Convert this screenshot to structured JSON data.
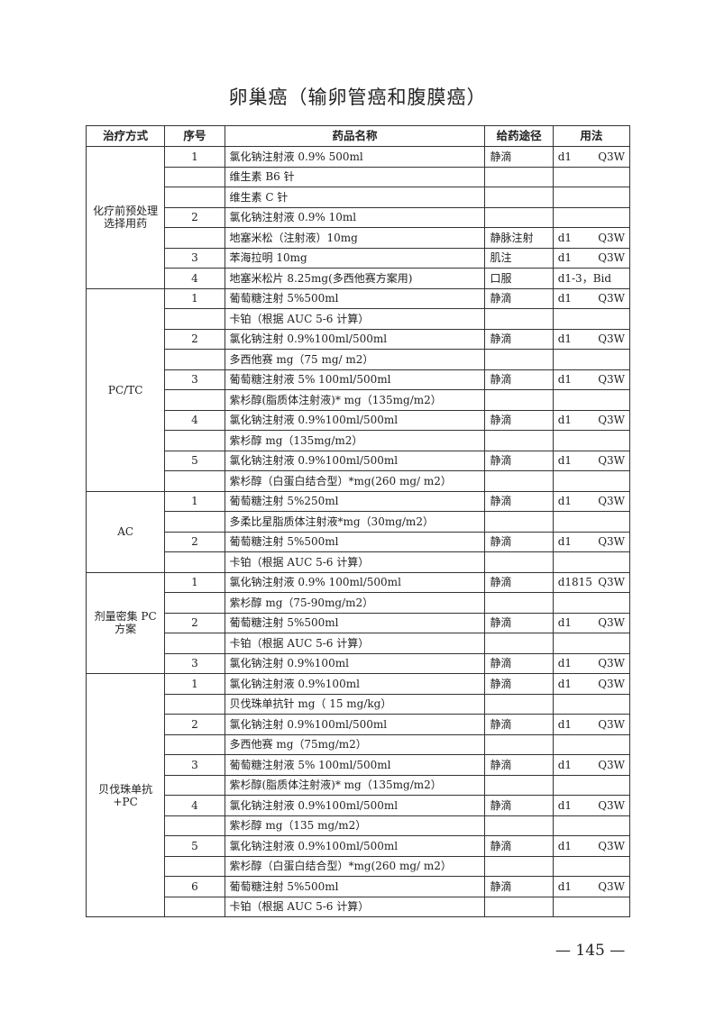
{
  "title": "卵巢癌（输卵管癌和腹膜癌）",
  "headers": [
    "治疗方式",
    "序号",
    "药品名称",
    "给药途径",
    "用法"
  ],
  "groups": [
    {
      "method": "化疗前预处理选择用药",
      "rows": [
        {
          "no": "1",
          "drug": "氯化钠注射液 0.9% 500ml",
          "route": "静滴",
          "use": [
            "d1",
            "Q3W"
          ]
        },
        {
          "no": "",
          "drug": "维生素 B6 针",
          "route": "",
          "use": [
            "",
            ""
          ]
        },
        {
          "no": "",
          "drug": "维生素 C 针",
          "route": "",
          "use": [
            "",
            ""
          ]
        },
        {
          "no": "2",
          "drug": "氯化钠注射液 0.9% 10ml",
          "route": "",
          "use": [
            "",
            ""
          ]
        },
        {
          "no": "",
          "drug": "地塞米松（注射液）10mg",
          "route": "静脉注射",
          "use": [
            "d1",
            "Q3W"
          ]
        },
        {
          "no": "3",
          "drug": "苯海拉明 10mg",
          "route": "肌注",
          "use": [
            "d1",
            "Q3W"
          ]
        },
        {
          "no": "4",
          "drug": "地塞米松片 8.25mg(多西他赛方案用)",
          "route": "口服",
          "use": [
            "d1-3，Bid",
            ""
          ]
        }
      ]
    },
    {
      "method": "PC/TC",
      "rows": [
        {
          "no": "1",
          "drug": "葡萄糖注射 5%500ml",
          "route": "静滴",
          "use": [
            "d1",
            "Q3W"
          ]
        },
        {
          "no": "",
          "drug": "卡铂（根据 AUC 5-6 计算）",
          "route": "",
          "use": [
            "",
            ""
          ]
        },
        {
          "no": "2",
          "drug": "氯化钠注射 0.9%100ml/500ml",
          "route": "静滴",
          "use": [
            "d1",
            "Q3W"
          ]
        },
        {
          "no": "",
          "drug": "多西他赛 mg（75 mg/ m2）",
          "route": "",
          "use": [
            "",
            ""
          ]
        },
        {
          "no": "3",
          "drug": "葡萄糖注射液 5% 100ml/500ml",
          "route": "静滴",
          "use": [
            "d1",
            "Q3W"
          ]
        },
        {
          "no": "",
          "drug": "紫杉醇(脂质体注射液)* mg（135mg/m2）",
          "route": "",
          "use": [
            "",
            ""
          ]
        },
        {
          "no": "4",
          "drug": "氯化钠注射液 0.9%100ml/500ml",
          "route": "静滴",
          "use": [
            "d1",
            "Q3W"
          ]
        },
        {
          "no": "",
          "drug": "紫杉醇 mg（135mg/m2）",
          "route": "",
          "use": [
            "",
            ""
          ]
        },
        {
          "no": "5",
          "drug": "氯化钠注射液 0.9%100ml/500ml",
          "route": "静滴",
          "use": [
            "d1",
            "Q3W"
          ]
        },
        {
          "no": "",
          "drug": "紫杉醇（白蛋白结合型）*mg(260 mg/ m2）",
          "route": "",
          "use": [
            "",
            ""
          ]
        }
      ]
    },
    {
      "method": "AC",
      "rows": [
        {
          "no": "1",
          "drug": "葡萄糖注射 5%250ml",
          "route": "静滴",
          "use": [
            "d1",
            "Q3W"
          ]
        },
        {
          "no": "",
          "drug": "多柔比星脂质体注射液*mg（30mg/m2）",
          "route": "",
          "use": [
            "",
            ""
          ]
        },
        {
          "no": "2",
          "drug": "葡萄糖注射 5%500ml",
          "route": "静滴",
          "use": [
            "d1",
            "Q3W"
          ]
        },
        {
          "no": "",
          "drug": "卡铂（根据 AUC 5-6 计算）",
          "route": "",
          "use": [
            "",
            ""
          ]
        }
      ]
    },
    {
      "method": "剂量密集 PC 方案",
      "rows": [
        {
          "no": "1",
          "drug": "氯化钠注射液 0.9% 100ml/500ml",
          "route": "静滴",
          "use": [
            "d1815",
            "Q3W"
          ]
        },
        {
          "no": "",
          "drug": "紫杉醇 mg（75-90mg/m2）",
          "route": "",
          "use": [
            "",
            ""
          ]
        },
        {
          "no": "2",
          "drug": "葡萄糖注射 5%500ml",
          "route": "静滴",
          "use": [
            "d1",
            "Q3W"
          ]
        },
        {
          "no": "",
          "drug": "卡铂（根据 AUC 5-6 计算）",
          "route": "",
          "use": [
            "",
            ""
          ]
        },
        {
          "no": "3",
          "drug": "氯化钠注射 0.9%100ml",
          "route": "静滴",
          "use": [
            "d1",
            "Q3W"
          ]
        }
      ]
    },
    {
      "method": "贝伐珠单抗+PC",
      "rows": [
        {
          "no": "1",
          "drug": "氯化钠注射液 0.9%100ml",
          "route": "静滴",
          "use": [
            "d1",
            "Q3W"
          ]
        },
        {
          "no": "",
          "drug": "贝伐珠单抗针 mg（ 15 mg/kg）",
          "route": "",
          "use": [
            "",
            ""
          ]
        },
        {
          "no": "2",
          "drug": "氯化钠注射 0.9%100ml/500ml",
          "route": "静滴",
          "use": [
            "d1",
            "Q3W"
          ]
        },
        {
          "no": "",
          "drug": "多西他赛 mg（75mg/m2）",
          "route": "",
          "use": [
            "",
            ""
          ]
        },
        {
          "no": "3",
          "drug": "葡萄糖注射液 5% 100ml/500ml",
          "route": "静滴",
          "use": [
            "d1",
            "Q3W"
          ]
        },
        {
          "no": "",
          "drug": "紫杉醇(脂质体注射液)*  mg（135mg/m2）",
          "route": "",
          "use": [
            "",
            ""
          ]
        },
        {
          "no": "4",
          "drug": "氯化钠注射液 0.9%100ml/500ml",
          "route": "静滴",
          "use": [
            "d1",
            "Q3W"
          ]
        },
        {
          "no": "",
          "drug": "紫杉醇 mg（135 mg/m2）",
          "route": "",
          "use": [
            "",
            ""
          ]
        },
        {
          "no": "5",
          "drug": "氯化钠注射液 0.9%100ml/500ml",
          "route": "静滴",
          "use": [
            "d1",
            "Q3W"
          ]
        },
        {
          "no": "",
          "drug": "紫杉醇（白蛋白结合型）*mg(260 mg/ m2）",
          "route": "",
          "use": [
            "",
            ""
          ]
        },
        {
          "no": "6",
          "drug": "葡萄糖注射 5%500ml",
          "route": "静滴",
          "use": [
            "d1",
            "Q3W"
          ]
        },
        {
          "no": "",
          "drug": "卡铂（根据 AUC 5-6 计算）",
          "route": "",
          "use": [
            "",
            ""
          ]
        }
      ]
    }
  ],
  "page_number": "— 145 —"
}
